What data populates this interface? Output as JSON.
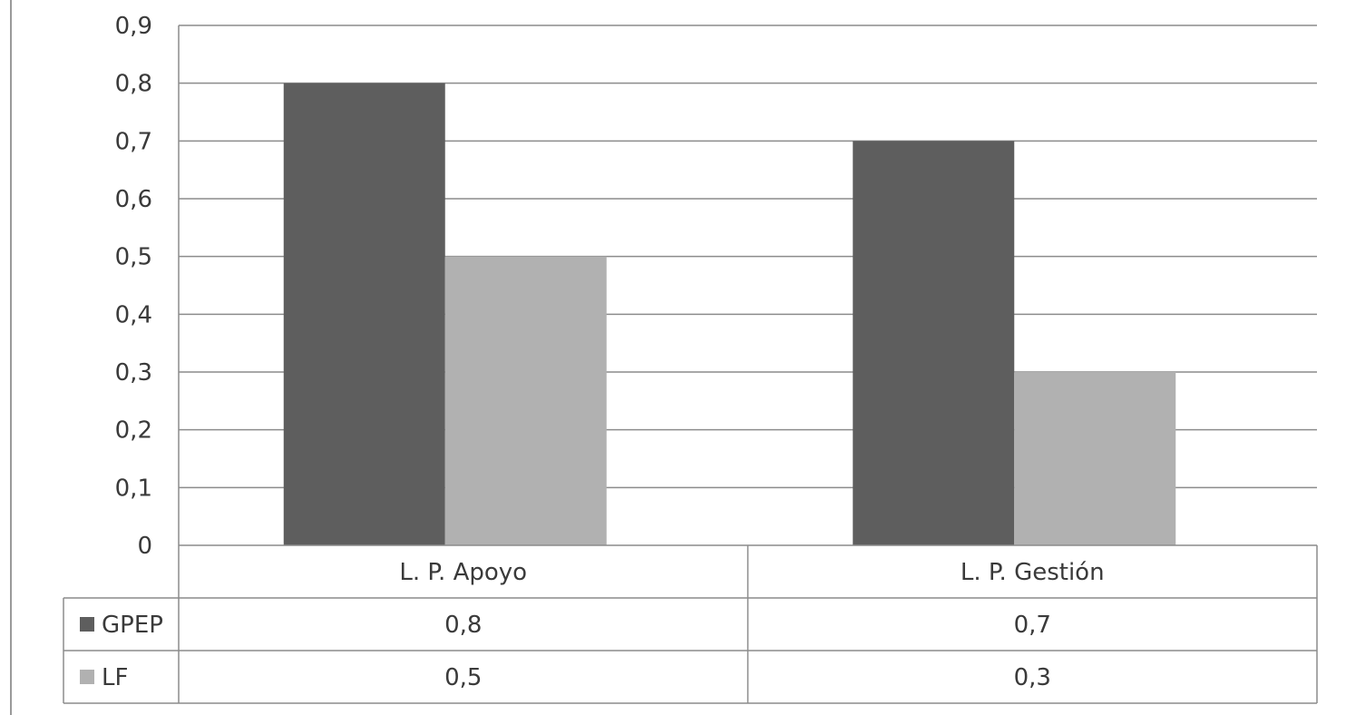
{
  "chart_data": {
    "type": "bar",
    "categories": [
      "L. P. Apoyo",
      "L. P. Gestión"
    ],
    "series": [
      {
        "name": "GPEP",
        "values": [
          0.8,
          0.7
        ],
        "color": "#5e5e5e"
      },
      {
        "name": "LF",
        "values": [
          0.5,
          0.3
        ],
        "color": "#b1b1b1"
      }
    ],
    "ylim": [
      0,
      0.9
    ],
    "yticks": [
      "0",
      "0,1",
      "0,2",
      "0,3",
      "0,4",
      "0,5",
      "0,6",
      "0,7",
      "0,8",
      "0,9"
    ],
    "data_table": [
      [
        "0,8",
        "0,7"
      ],
      [
        "0,5",
        "0,3"
      ]
    ],
    "grid": true,
    "legend": "data-table"
  }
}
